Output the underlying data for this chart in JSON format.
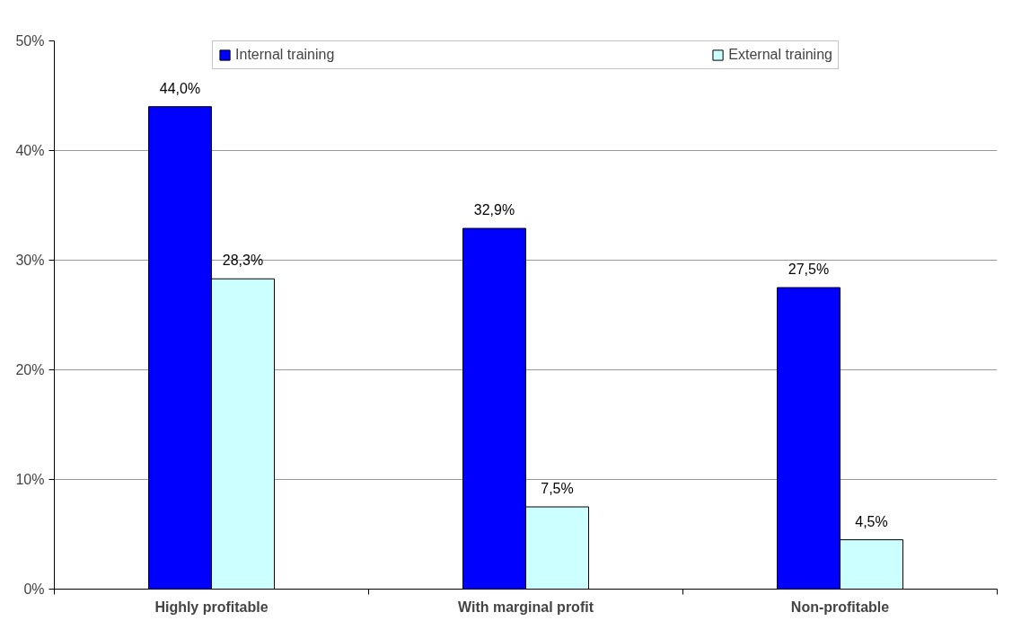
{
  "chart_data": {
    "type": "bar",
    "categories": [
      "Highly profitable",
      "With marginal profit",
      "Non-profitable"
    ],
    "series": [
      {
        "name": "Internal training",
        "color": "#0000ff",
        "values": [
          44.0,
          32.9,
          27.5
        ],
        "value_labels": [
          "44,0%",
          "32,9%",
          "27,5%"
        ]
      },
      {
        "name": "External training",
        "color": "#ccffff",
        "values": [
          28.3,
          7.5,
          4.5
        ],
        "value_labels": [
          "28,3%",
          "7,5%",
          "4,5%"
        ]
      }
    ],
    "ylim": [
      0,
      50
    ],
    "yticks": [
      {
        "value": 0,
        "label": "0%"
      },
      {
        "value": 10,
        "label": "10%"
      },
      {
        "value": 20,
        "label": "20%"
      },
      {
        "value": 30,
        "label": "30%"
      },
      {
        "value": 40,
        "label": "40%"
      },
      {
        "value": 50,
        "label": "50%"
      }
    ],
    "grid": "y",
    "legend": "top"
  }
}
